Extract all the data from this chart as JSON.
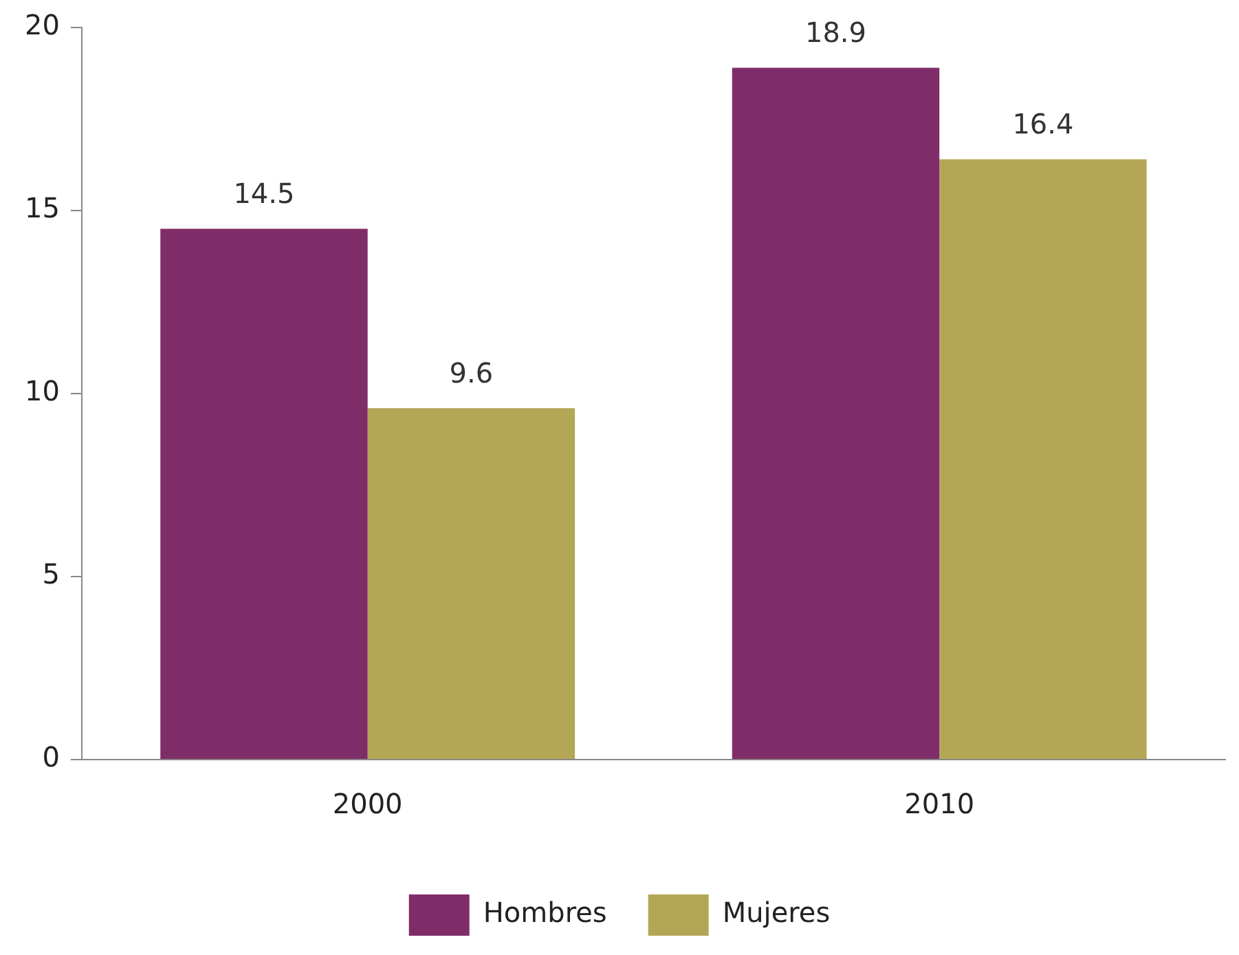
{
  "chart_data": {
    "type": "bar",
    "categories": [
      "2000",
      "2010"
    ],
    "series": [
      {
        "name": "Hombres",
        "color": "#7f2d69",
        "values": [
          14.5,
          18.9
        ]
      },
      {
        "name": "Mujeres",
        "color": "#b3a756",
        "values": [
          9.6,
          16.4
        ]
      }
    ],
    "ylim": [
      0,
      20
    ],
    "yticks": [
      0,
      5,
      10,
      15,
      20
    ],
    "grid": false,
    "legend": "bottom",
    "data_labels": true
  }
}
